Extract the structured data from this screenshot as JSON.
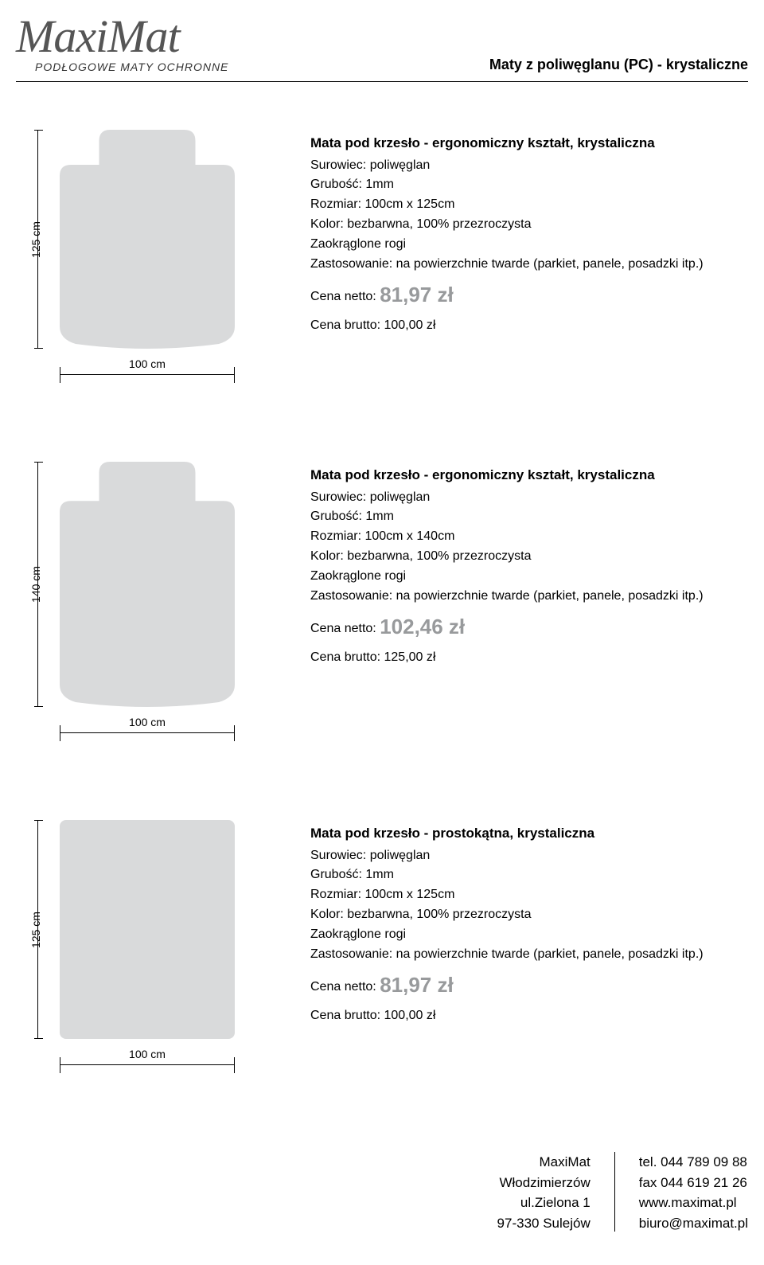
{
  "header": {
    "logo": "MaxiMat",
    "tagline": "PODŁOGOWE MATY OCHRONNE",
    "category": "Maty z poliwęglanu (PC) - krystaliczne"
  },
  "products": [
    {
      "height_cm": "125 cm",
      "width_cm": "100 cm",
      "shape": "ergo",
      "shape_w": 220,
      "shape_h": 275,
      "fill": "#d9dadb",
      "title": "Mata pod krzesło - ergonomiczny kształt, krystaliczna",
      "lines": [
        "Surowiec: poliwęglan",
        "Grubość: 1mm",
        "Rozmiar: 100cm x 125cm",
        "Kolor: bezbarwna, 100% przezroczysta",
        "Zaokrąglone rogi",
        "Zastosowanie: na powierzchnie twarde (parkiet, panele, posadzki itp.)"
      ],
      "netto_label": "Cena netto:",
      "netto_price": "81,97 zł",
      "brutto": "Cena brutto: 100,00 zł"
    },
    {
      "height_cm": "140 cm",
      "width_cm": "100 cm",
      "shape": "ergo",
      "shape_w": 220,
      "shape_h": 308,
      "fill": "#d9dadb",
      "title": "Mata pod krzesło - ergonomiczny kształt, krystaliczna",
      "lines": [
        "Surowiec: poliwęglan",
        "Grubość: 1mm",
        "Rozmiar: 100cm x 140cm",
        "Kolor: bezbarwna, 100% przezroczysta",
        "Zaokrąglone rogi",
        "Zastosowanie: na powierzchnie twarde (parkiet, panele, posadzki itp.)"
      ],
      "netto_label": "Cena netto:",
      "netto_price": "102,46 zł",
      "brutto": "Cena brutto: 125,00 zł"
    },
    {
      "height_cm": "125 cm",
      "width_cm": "100 cm",
      "shape": "rect",
      "shape_w": 220,
      "shape_h": 275,
      "fill": "#d9dadb",
      "title": "Mata pod krzesło - prostokątna, krystaliczna",
      "lines": [
        "Surowiec: poliwęglan",
        "Grubość: 1mm",
        "Rozmiar: 100cm x 125cm",
        "Kolor: bezbarwna, 100% przezroczysta",
        "Zaokrąglone rogi",
        "Zastosowanie: na powierzchnie twarde (parkiet, panele, posadzki itp.)"
      ],
      "netto_label": "Cena netto:",
      "netto_price": "81,97 zł",
      "brutto": "Cena brutto: 100,00 zł"
    }
  ],
  "footer": {
    "left": [
      "MaxiMat",
      "Włodzimierzów",
      "ul.Zielona 1",
      "97-330 Sulejów"
    ],
    "right": [
      "tel. 044 789 09 88",
      "fax 044 619 21 26",
      "www.maximat.pl",
      "biuro@maximat.pl"
    ]
  }
}
